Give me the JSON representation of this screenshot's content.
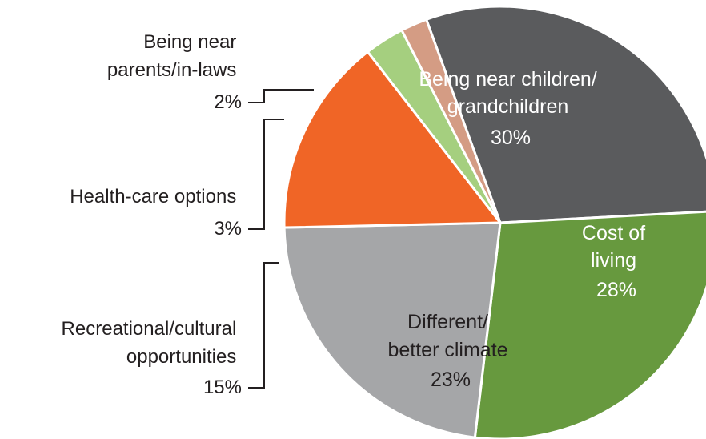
{
  "chart_data": {
    "type": "pie",
    "start_angle_deg": -110,
    "direction": "clockwise",
    "slices": [
      {
        "label_lines": [
          "Being near children/",
          "grandchildren"
        ],
        "value": 30,
        "value_label": "30%",
        "color": "#5a5b5d",
        "label_color": "#ffffff"
      },
      {
        "label_lines": [
          "Cost of",
          "living"
        ],
        "value": 28,
        "value_label": "28%",
        "color": "#67993e",
        "label_color": "#ffffff"
      },
      {
        "label_lines": [
          "Different/",
          "better climate"
        ],
        "value": 23,
        "value_label": "23%",
        "color": "#a5a6a8",
        "label_color": "#231f20"
      },
      {
        "label_lines": [
          "Recreational/cultural",
          "opportunities"
        ],
        "value": 15,
        "value_label": "15%",
        "color": "#f06526",
        "label_color": "#231f20"
      },
      {
        "label_lines": [
          "Health-care options"
        ],
        "value": 3,
        "value_label": "3%",
        "color": "#a5cf7f",
        "label_color": "#231f20"
      },
      {
        "label_lines": [
          "Being near",
          "parents/in-laws"
        ],
        "value": 2,
        "value_label": "2%",
        "color": "#d49c84",
        "label_color": "#231f20"
      }
    ]
  }
}
